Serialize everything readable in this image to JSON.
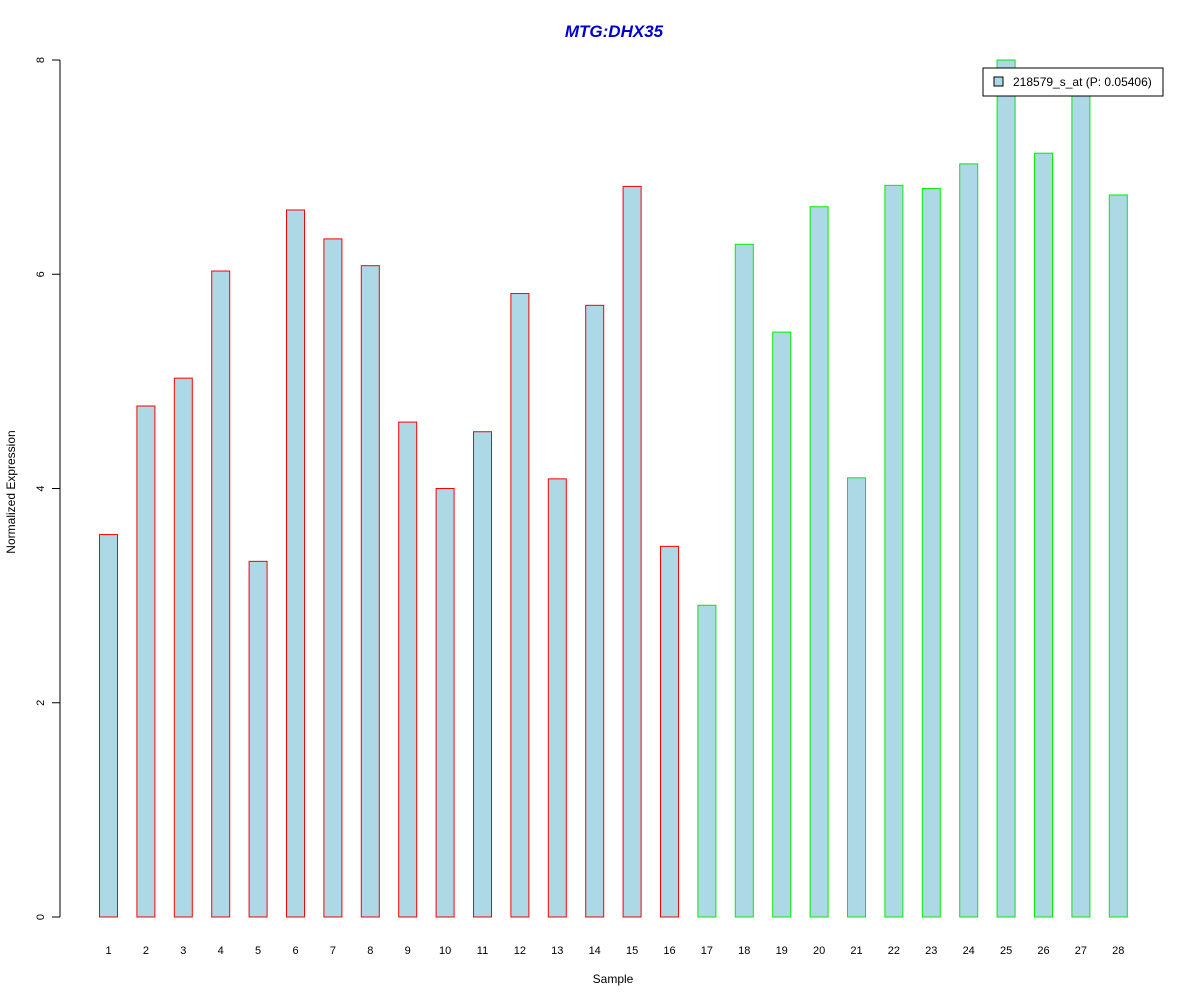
{
  "chart_data": {
    "type": "bar",
    "title": "MTG:DHX35",
    "title_color": "#0000cc",
    "xlabel": "Sample",
    "ylabel": "Normalized Expression",
    "ylim": [
      0,
      8
    ],
    "yticks": [
      "0",
      "2",
      "4",
      "6",
      "8"
    ],
    "grid": false,
    "legend_position": "top-right",
    "categories": [
      "1",
      "2",
      "3",
      "4",
      "5",
      "6",
      "7",
      "8",
      "9",
      "10",
      "11",
      "12",
      "13",
      "14",
      "15",
      "16",
      "17",
      "18",
      "19",
      "20",
      "21",
      "22",
      "23",
      "24",
      "25",
      "26",
      "27",
      "28"
    ],
    "series": [
      {
        "name": "218579_s_at (P: 0.05406)",
        "fill": "#add8e6",
        "values": [
          3.57,
          4.77,
          5.03,
          6.03,
          3.32,
          6.6,
          6.33,
          6.08,
          4.62,
          4.0,
          4.53,
          5.82,
          4.09,
          5.71,
          6.82,
          3.46,
          2.91,
          6.28,
          5.46,
          6.63,
          4.1,
          6.83,
          6.8,
          7.03,
          8.0,
          7.13,
          7.8,
          6.74
        ]
      }
    ],
    "bar_outline_colors": [
      "#ff0000",
      "#ff0000",
      "#ff0000",
      "#ff0000",
      "#ff0000",
      "#ff0000",
      "#ff0000",
      "#ff0000",
      "#ff0000",
      "#ff0000",
      "#ff0000",
      "#ff0000",
      "#ff0000",
      "#ff0000",
      "#ff0000",
      "#ff0000",
      "#00ee00",
      "#00ee00",
      "#00ee00",
      "#00ee00",
      "#00ee00",
      "#00ee00",
      "#00ee00",
      "#00ee00",
      "#00ee00",
      "#00ee00",
      "#00ee00",
      "#00ee00"
    ]
  }
}
